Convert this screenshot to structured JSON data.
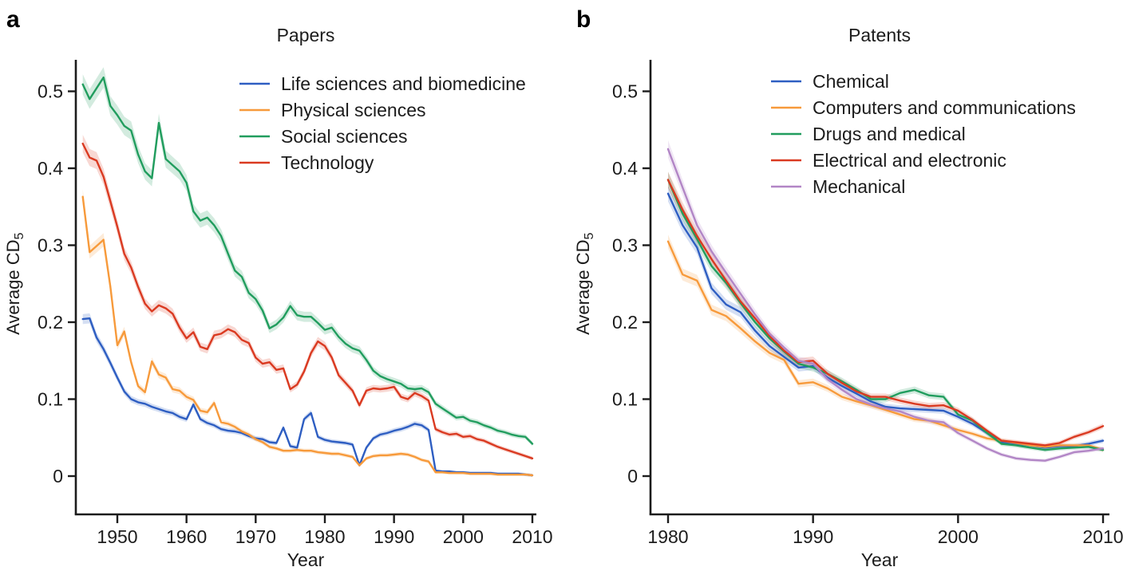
{
  "figure": {
    "panel_a_label": "a",
    "panel_b_label": "b",
    "text_color": "#1c1c1c",
    "axis_color": "#1c1c1c",
    "background": "#ffffff"
  },
  "chart_data": [
    {
      "id": "papers",
      "type": "line",
      "title": "Papers",
      "xlabel": "Year",
      "ylabel_main": "Average CD",
      "ylabel_sub": "5",
      "x_start_year": 1945,
      "x_ticks": [
        1950,
        1960,
        1970,
        1980,
        1990,
        2000,
        2010
      ],
      "y_ticks": [
        0,
        0.1,
        0.2,
        0.3,
        0.4,
        0.5
      ],
      "y_tick_labels": [
        "0",
        "0.1",
        "0.2",
        "0.3",
        "0.4",
        "0.5"
      ],
      "xlim": [
        1944,
        2010.6
      ],
      "ylim": [
        -0.05,
        0.55
      ],
      "grid": false,
      "legend_position": "top-right-inside",
      "confidence_band": {
        "base_halfwidth": 0.002,
        "relative_halfwidth": 0.022,
        "opacity": 0.2
      },
      "series": [
        {
          "name": "Life sciences and biomedicine",
          "color": "#2e5ec2",
          "values": [
            0.204,
            0.205,
            0.18,
            0.165,
            0.147,
            0.128,
            0.11,
            0.1,
            0.096,
            0.094,
            0.09,
            0.087,
            0.084,
            0.082,
            0.077,
            0.074,
            0.093,
            0.074,
            0.069,
            0.066,
            0.061,
            0.059,
            0.058,
            0.056,
            0.052,
            0.049,
            0.048,
            0.044,
            0.043,
            0.063,
            0.039,
            0.037,
            0.074,
            0.082,
            0.051,
            0.047,
            0.045,
            0.044,
            0.043,
            0.041,
            0.014,
            0.037,
            0.049,
            0.054,
            0.056,
            0.059,
            0.061,
            0.064,
            0.068,
            0.066,
            0.06,
            0.007,
            0.006,
            0.006,
            0.005,
            0.005,
            0.004,
            0.004,
            0.004,
            0.004,
            0.003,
            0.003,
            0.003,
            0.003,
            0.002,
            0.001
          ]
        },
        {
          "name": "Physical sciences",
          "color": "#f79a3b",
          "values": [
            0.363,
            0.291,
            0.299,
            0.307,
            0.246,
            0.17,
            0.188,
            0.148,
            0.117,
            0.109,
            0.149,
            0.132,
            0.128,
            0.113,
            0.111,
            0.103,
            0.099,
            0.085,
            0.083,
            0.095,
            0.07,
            0.068,
            0.064,
            0.058,
            0.054,
            0.048,
            0.044,
            0.038,
            0.036,
            0.033,
            0.033,
            0.034,
            0.033,
            0.033,
            0.031,
            0.03,
            0.029,
            0.029,
            0.027,
            0.025,
            0.014,
            0.023,
            0.026,
            0.027,
            0.027,
            0.028,
            0.029,
            0.028,
            0.025,
            0.021,
            0.019,
            0.005,
            0.005,
            0.004,
            0.004,
            0.004,
            0.003,
            0.003,
            0.003,
            0.003,
            0.002,
            0.002,
            0.002,
            0.002,
            0.002,
            0.001
          ]
        },
        {
          "name": "Social sciences",
          "color": "#219d5e",
          "values": [
            0.509,
            0.49,
            0.504,
            0.518,
            0.481,
            0.469,
            0.455,
            0.449,
            0.418,
            0.396,
            0.387,
            0.459,
            0.412,
            0.404,
            0.396,
            0.381,
            0.344,
            0.332,
            0.336,
            0.326,
            0.312,
            0.289,
            0.267,
            0.259,
            0.238,
            0.23,
            0.215,
            0.192,
            0.197,
            0.206,
            0.221,
            0.209,
            0.207,
            0.207,
            0.199,
            0.19,
            0.193,
            0.181,
            0.172,
            0.166,
            0.163,
            0.151,
            0.137,
            0.13,
            0.126,
            0.123,
            0.12,
            0.114,
            0.113,
            0.114,
            0.109,
            0.094,
            0.088,
            0.082,
            0.076,
            0.077,
            0.072,
            0.07,
            0.066,
            0.063,
            0.059,
            0.057,
            0.054,
            0.052,
            0.051,
            0.042
          ]
        },
        {
          "name": "Technology",
          "color": "#da3a21",
          "values": [
            0.432,
            0.414,
            0.41,
            0.389,
            0.357,
            0.324,
            0.289,
            0.271,
            0.246,
            0.224,
            0.214,
            0.222,
            0.218,
            0.211,
            0.193,
            0.179,
            0.187,
            0.168,
            0.165,
            0.183,
            0.185,
            0.191,
            0.187,
            0.177,
            0.173,
            0.154,
            0.146,
            0.148,
            0.138,
            0.14,
            0.113,
            0.119,
            0.136,
            0.16,
            0.175,
            0.169,
            0.154,
            0.131,
            0.121,
            0.111,
            0.092,
            0.111,
            0.114,
            0.113,
            0.114,
            0.116,
            0.103,
            0.1,
            0.108,
            0.104,
            0.098,
            0.061,
            0.057,
            0.054,
            0.055,
            0.051,
            0.052,
            0.048,
            0.046,
            0.042,
            0.038,
            0.035,
            0.032,
            0.029,
            0.026,
            0.023
          ]
        }
      ]
    },
    {
      "id": "patents",
      "type": "line",
      "title": "Patents",
      "xlabel": "Year",
      "ylabel_main": "Average CD",
      "ylabel_sub": "5",
      "x_start_year": 1980,
      "x_ticks": [
        1980,
        1990,
        2000,
        2010
      ],
      "y_ticks": [
        0,
        0.1,
        0.2,
        0.3,
        0.4,
        0.5
      ],
      "y_tick_labels": [
        "0",
        "0.1",
        "0.2",
        "0.3",
        "0.4",
        "0.5"
      ],
      "xlim": [
        1978.8,
        2010.5
      ],
      "ylim": [
        -0.05,
        0.55
      ],
      "grid": false,
      "legend_position": "top-right-inside",
      "confidence_band": {
        "base_halfwidth": 0.002,
        "relative_halfwidth": 0.022,
        "opacity": 0.2
      },
      "series": [
        {
          "name": "Chemical",
          "color": "#2e5ec2",
          "values": [
            0.367,
            0.326,
            0.297,
            0.244,
            0.223,
            0.213,
            0.189,
            0.169,
            0.155,
            0.141,
            0.143,
            0.128,
            0.117,
            0.107,
            0.097,
            0.09,
            0.088,
            0.087,
            0.086,
            0.085,
            0.077,
            0.068,
            0.056,
            0.044,
            0.042,
            0.04,
            0.037,
            0.039,
            0.039,
            0.042,
            0.046
          ]
        },
        {
          "name": "Computers and communications",
          "color": "#f79a3b",
          "values": [
            0.305,
            0.262,
            0.254,
            0.216,
            0.208,
            0.192,
            0.175,
            0.16,
            0.151,
            0.12,
            0.122,
            0.114,
            0.103,
            0.097,
            0.092,
            0.086,
            0.08,
            0.074,
            0.072,
            0.066,
            0.06,
            0.055,
            0.049,
            0.046,
            0.043,
            0.04,
            0.038,
            0.04,
            0.04,
            0.04,
            0.034
          ]
        },
        {
          "name": "Drugs and medical",
          "color": "#219d5e",
          "values": [
            0.385,
            0.341,
            0.308,
            0.273,
            0.251,
            0.225,
            0.2,
            0.179,
            0.162,
            0.146,
            0.141,
            0.133,
            0.123,
            0.112,
            0.1,
            0.1,
            0.108,
            0.112,
            0.105,
            0.103,
            0.08,
            0.072,
            0.056,
            0.042,
            0.04,
            0.037,
            0.034,
            0.036,
            0.037,
            0.038,
            0.034
          ]
        },
        {
          "name": "Electrical and electronic",
          "color": "#da3a21",
          "values": [
            0.385,
            0.346,
            0.312,
            0.282,
            0.254,
            0.227,
            0.205,
            0.182,
            0.163,
            0.148,
            0.15,
            0.133,
            0.121,
            0.11,
            0.103,
            0.103,
            0.098,
            0.094,
            0.091,
            0.092,
            0.085,
            0.073,
            0.059,
            0.046,
            0.044,
            0.042,
            0.04,
            0.043,
            0.051,
            0.057,
            0.065
          ]
        },
        {
          "name": "Mechanical",
          "color": "#b286c6",
          "values": [
            0.425,
            0.375,
            0.326,
            0.292,
            0.264,
            0.237,
            0.21,
            0.185,
            0.167,
            0.15,
            0.146,
            0.126,
            0.112,
            0.1,
            0.093,
            0.088,
            0.084,
            0.077,
            0.072,
            0.07,
            0.056,
            0.046,
            0.036,
            0.028,
            0.023,
            0.021,
            0.02,
            0.025,
            0.031,
            0.033,
            0.036
          ]
        }
      ]
    }
  ]
}
